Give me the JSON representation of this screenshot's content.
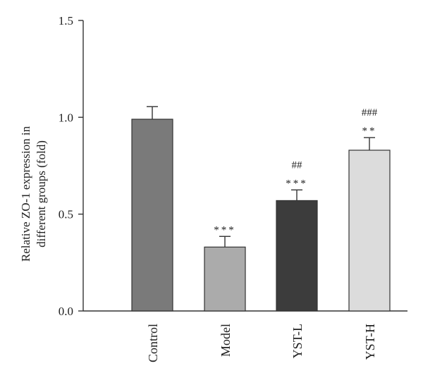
{
  "chart_data": {
    "type": "bar",
    "categories": [
      "Control",
      "Model",
      "YST-L",
      "YST-H"
    ],
    "values": [
      0.99,
      0.33,
      0.57,
      0.83
    ],
    "errors": [
      0.065,
      0.055,
      0.055,
      0.065
    ],
    "bar_colors": [
      "#7a7a7a",
      "#ababab",
      "#3c3c3c",
      "#dcdcdc"
    ],
    "annotations": [
      [],
      [
        "***"
      ],
      [
        "***",
        "##"
      ],
      [
        "**",
        "###"
      ]
    ],
    "ylabel_lines": [
      "Relative ZO-1 expression in",
      "different groups (fold)"
    ],
    "xlabel": "",
    "ylim": [
      0,
      1.5
    ],
    "yticks": [
      0.0,
      0.5,
      1.0,
      1.5
    ],
    "ytick_labels": [
      "0.0",
      "0.5",
      "1.0",
      "1.5"
    ],
    "grid": false,
    "legend": "none"
  }
}
